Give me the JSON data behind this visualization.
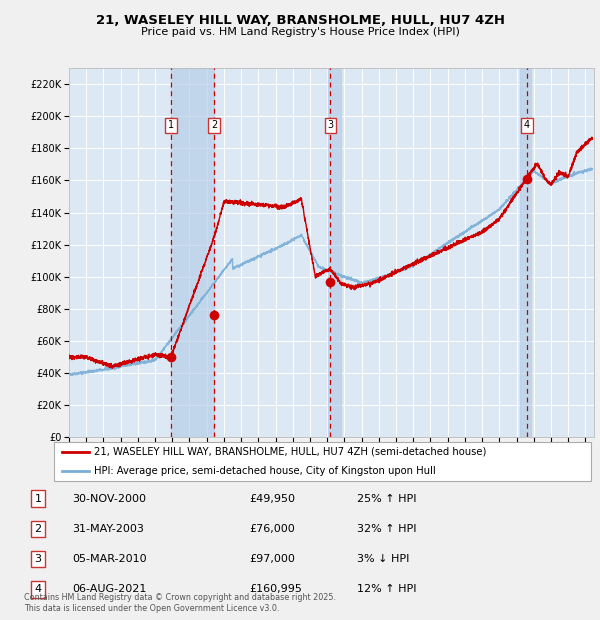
{
  "title": "21, WASELEY HILL WAY, BRANSHOLME, HULL, HU7 4ZH",
  "subtitle": "Price paid vs. HM Land Registry's House Price Index (HPI)",
  "legend_house": "21, WASELEY HILL WAY, BRANSHOLME, HULL, HU7 4ZH (semi-detached house)",
  "legend_hpi": "HPI: Average price, semi-detached house, City of Kingston upon Hull",
  "footer1": "Contains HM Land Registry data © Crown copyright and database right 2025.",
  "footer2": "This data is licensed under the Open Government Licence v3.0.",
  "transactions": [
    {
      "num": 1,
      "date": "30-NOV-2000",
      "price": "£49,950",
      "hpi": "25% ↑ HPI",
      "year": 2000.92,
      "price_val": 49950
    },
    {
      "num": 2,
      "date": "31-MAY-2003",
      "price": "£76,000",
      "hpi": "32% ↑ HPI",
      "year": 2003.42,
      "price_val": 76000
    },
    {
      "num": 3,
      "date": "05-MAR-2010",
      "price": "£97,000",
      "hpi": "3% ↓ HPI",
      "year": 2010.18,
      "price_val": 97000
    },
    {
      "num": 4,
      "date": "06-AUG-2021",
      "price": "£160,995",
      "hpi": "12% ↑ HPI",
      "year": 2021.6,
      "price_val": 160995
    }
  ],
  "ylim": [
    0,
    230000
  ],
  "xlim_start": 1995.0,
  "xlim_end": 2025.5,
  "ytick_step": 20000,
  "fig_bg": "#f0f0f0",
  "plot_bg": "#dce9f5",
  "grid_color": "#ffffff",
  "red_line_color": "#cc0000",
  "blue_line_color": "#7aaed6",
  "shade_color": "#b8cfe8",
  "box_edge_color": "#cc3333"
}
